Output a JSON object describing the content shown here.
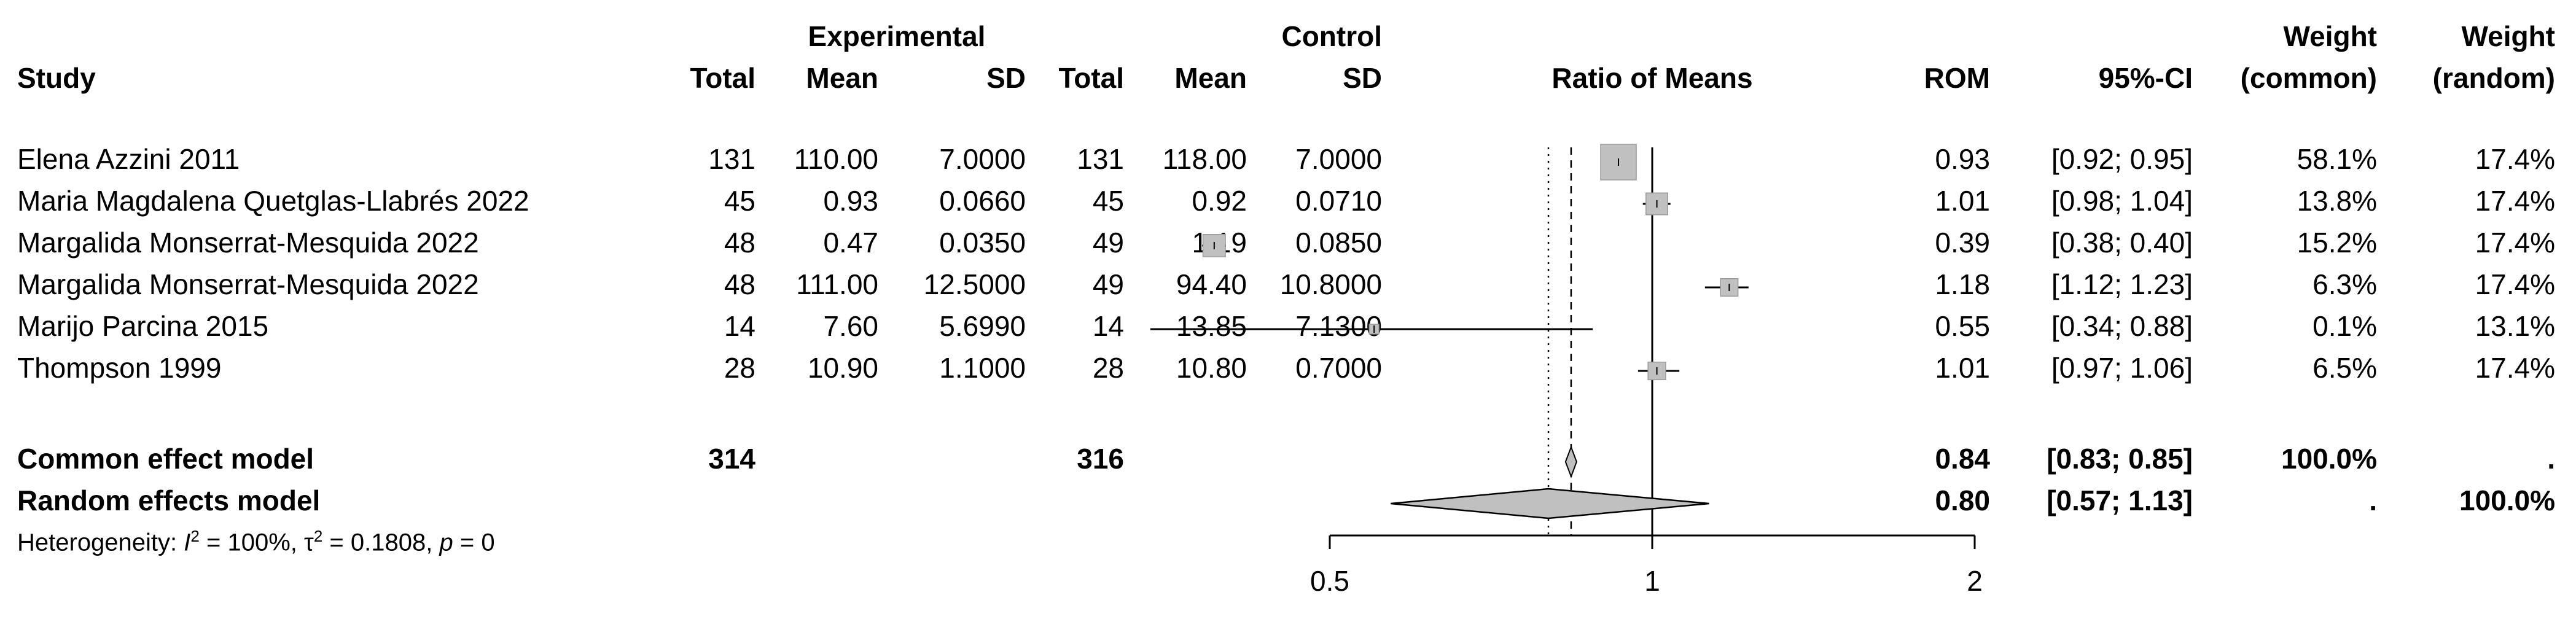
{
  "headers": {
    "study": "Study",
    "experimental": "Experimental",
    "control": "Control",
    "total": "Total",
    "mean": "Mean",
    "sd": "SD",
    "ratio_of_means": "Ratio of Means",
    "rom": "ROM",
    "ci": "95%-CI",
    "weight": "Weight",
    "weight_common": "(common)",
    "weight_random": "(random)"
  },
  "studies": [
    {
      "study": "Elena Azzini  2011",
      "e_total": "131",
      "e_mean": "110.00",
      "e_sd": "7.0000",
      "c_total": "131",
      "c_mean": "118.00",
      "c_sd": "7.0000",
      "rom": "0.93",
      "ci": "[0.92; 0.95]",
      "w_common": "58.1%",
      "w_random": "17.4%"
    },
    {
      "study": "Maria Magdalena Quetglas-Llabrés  2022",
      "e_total": "45",
      "e_mean": "0.93",
      "e_sd": "0.0660",
      "c_total": "45",
      "c_mean": "0.92",
      "c_sd": "0.0710",
      "rom": "1.01",
      "ci": "[0.98; 1.04]",
      "w_common": "13.8%",
      "w_random": "17.4%"
    },
    {
      "study": "Margalida Monserrat-Mesquida 2022",
      "e_total": "48",
      "e_mean": "0.47",
      "e_sd": "0.0350",
      "c_total": "49",
      "c_mean": "1.19",
      "c_sd": "0.0850",
      "rom": "0.39",
      "ci": "[0.38; 0.40]",
      "w_common": "15.2%",
      "w_random": "17.4%"
    },
    {
      "study": "Margalida Monserrat-Mesquida 2022",
      "e_total": "48",
      "e_mean": "111.00",
      "e_sd": "12.5000",
      "c_total": "49",
      "c_mean": "94.40",
      "c_sd": "10.8000",
      "rom": "1.18",
      "ci": "[1.12; 1.23]",
      "w_common": "6.3%",
      "w_random": "17.4%"
    },
    {
      "study": "Marijo Parcina  2015",
      "e_total": "14",
      "e_mean": "7.60",
      "e_sd": "5.6990",
      "c_total": "14",
      "c_mean": "13.85",
      "c_sd": "7.1300",
      "rom": "0.55",
      "ci": "[0.34; 0.88]",
      "w_common": "0.1%",
      "w_random": "13.1%"
    },
    {
      "study": "Thompson 1999",
      "e_total": "28",
      "e_mean": "10.90",
      "e_sd": "1.1000",
      "c_total": "28",
      "c_mean": "10.80",
      "c_sd": "0.7000",
      "rom": "1.01",
      "ci": "[0.97; 1.06]",
      "w_common": "6.5%",
      "w_random": "17.4%"
    }
  ],
  "summary": {
    "common": {
      "label": "Common effect model",
      "e_total": "314",
      "c_total": "316",
      "rom": "0.84",
      "ci": "[0.83; 0.85]",
      "w_common": "100.0%",
      "w_random": "."
    },
    "random": {
      "label": "Random effects model",
      "rom": "0.80",
      "ci": "[0.57; 1.13]",
      "w_common": ".",
      "w_random": "100.0%"
    }
  },
  "heterogeneity": {
    "prefix": "Heterogeneity: ",
    "i2": "= 100%, ",
    "tau2": "= 0.1808, ",
    "p": "= 0"
  },
  "chart_data": {
    "type": "forest",
    "xlabel": "Ratio of Means",
    "scale": "log",
    "ticks": [
      0.5,
      1,
      2
    ],
    "tick_labels": [
      "0.5",
      "1",
      "2"
    ],
    "null_value": 1,
    "points": [
      {
        "est": 0.93,
        "lo": 0.92,
        "hi": 0.95,
        "weight": 58.1
      },
      {
        "est": 1.01,
        "lo": 0.98,
        "hi": 1.04,
        "weight": 13.8
      },
      {
        "est": 0.39,
        "lo": 0.38,
        "hi": 0.4,
        "weight": 15.2
      },
      {
        "est": 1.18,
        "lo": 1.12,
        "hi": 1.23,
        "weight": 6.3
      },
      {
        "est": 0.55,
        "lo": 0.34,
        "hi": 0.88,
        "weight": 0.1
      },
      {
        "est": 1.01,
        "lo": 0.97,
        "hi": 1.06,
        "weight": 6.5
      }
    ],
    "common": {
      "est": 0.84,
      "lo": 0.83,
      "hi": 0.85
    },
    "random": {
      "est": 0.8,
      "lo": 0.57,
      "hi": 1.13
    },
    "xlim": [
      0.5,
      2
    ],
    "colors": {
      "square": "#c0c0c0",
      "diamond": "#c0c0c0",
      "line": "#000000"
    }
  }
}
